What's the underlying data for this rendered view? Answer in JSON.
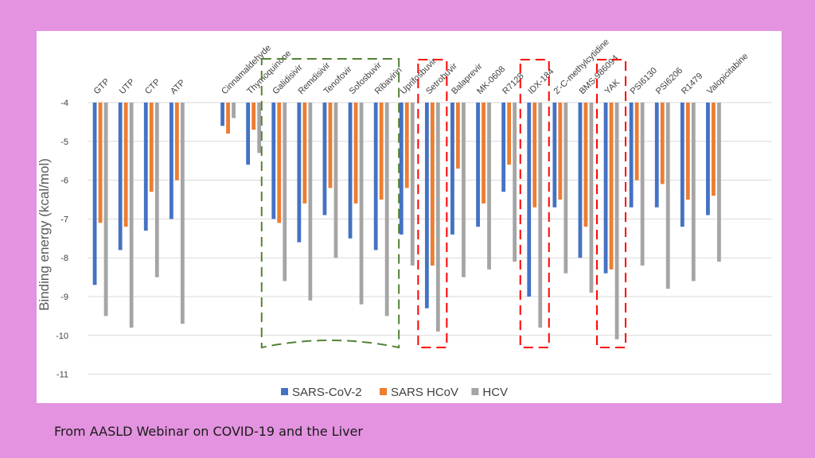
{
  "caption": "From AASLD Webinar on COVID-19 and the Liver",
  "colors": {
    "background": "#e393df",
    "panel": "#ffffff",
    "sars_cov2": "#4472c4",
    "sars_hcov": "#ed7d31",
    "hcv": "#a5a5a5",
    "grid": "#d9d9d9",
    "green_box": "#548235",
    "red_box": "#ff0000"
  },
  "chart_data": {
    "type": "bar",
    "title": "",
    "xlabel": "",
    "ylabel": "Binding energy (kcal/mol)",
    "ylim": [
      -11,
      -4
    ],
    "yticks": [
      -4,
      -5,
      -6,
      -7,
      -8,
      -9,
      -10,
      -11
    ],
    "grid": true,
    "legend_position": "bottom-center",
    "categories": [
      "GTP",
      "UTP",
      "CTP",
      "ATP",
      "Cinnamaldehyde",
      "Thymoquinone",
      "Galidisivir",
      "Remdisivir",
      "Tenofovir",
      "Sofosbuvir",
      "Ribavirin",
      "Uprifosbuvir",
      "Setrobuvir",
      "Balaprevir",
      "MK-0608",
      "R7128",
      "IDX-184",
      "2'-C-methylcytidine",
      "BMS-986094",
      "YAK",
      "PSI6130",
      "PSI6206",
      "R1479",
      "Valopicitabine"
    ],
    "category_labels": [
      "GTP",
      "UTP",
      "CTP",
      "ATP",
      "",
      "Cinnamaldehyde",
      "Thymoquinone",
      "Galidisivir",
      "Remdisivir",
      "Tenofovir",
      "Sofosbuvir",
      "Ribavirin",
      "Uprifosbuvir",
      "Setrobuvir",
      "Balaprevir",
      "MK-0608",
      "R7128",
      "IDX-184",
      "2'-C-methylcytidine",
      "BMS-986094",
      "YAK",
      "PSI6130",
      "PSI6206",
      "R1479",
      "Valopicitabine"
    ],
    "series": [
      {
        "name": "SARS-CoV-2",
        "values": [
          -8.7,
          -7.8,
          -7.3,
          -7.0,
          -4.6,
          -5.6,
          -7.0,
          -7.6,
          -6.9,
          -7.5,
          -7.8,
          -7.4,
          -9.3,
          -7.4,
          -7.2,
          -6.3,
          -9.0,
          -6.7,
          -8.0,
          -8.4,
          -6.7,
          -6.7,
          -7.2,
          -6.9
        ]
      },
      {
        "name": "SARS HCoV",
        "values": [
          -7.1,
          -7.2,
          -6.3,
          -6.0,
          -4.8,
          -4.7,
          -7.1,
          -6.6,
          -6.2,
          -6.6,
          -6.5,
          -6.2,
          -8.2,
          -5.7,
          -6.6,
          -5.6,
          -6.7,
          -6.5,
          -7.2,
          -8.3,
          -6.0,
          -6.1,
          -6.5,
          -6.4
        ]
      },
      {
        "name": "HCV",
        "values": [
          -9.5,
          -9.8,
          -8.5,
          -9.7,
          -4.4,
          -5.3,
          -8.6,
          -9.1,
          -8.0,
          -9.2,
          -9.5,
          -8.2,
          -9.9,
          -8.5,
          -8.3,
          -8.1,
          -9.8,
          -8.4,
          -8.9,
          -10.1,
          -8.2,
          -8.8,
          -8.6,
          -8.1
        ]
      }
    ],
    "legend": [
      "SARS-CoV-2",
      "SARS HCoV",
      "HCV"
    ],
    "annotations": [
      {
        "type": "dashed-box",
        "color": "green",
        "groups": [
          "Galidisivir",
          "Remdisivir",
          "Tenofovir",
          "Sofosbuvir",
          "Ribavirin"
        ]
      },
      {
        "type": "dashed-box",
        "color": "red",
        "groups": [
          "Setrobuvir"
        ]
      },
      {
        "type": "dashed-box",
        "color": "red",
        "groups": [
          "IDX-184"
        ]
      },
      {
        "type": "dashed-box",
        "color": "red",
        "groups": [
          "YAK"
        ]
      }
    ]
  }
}
